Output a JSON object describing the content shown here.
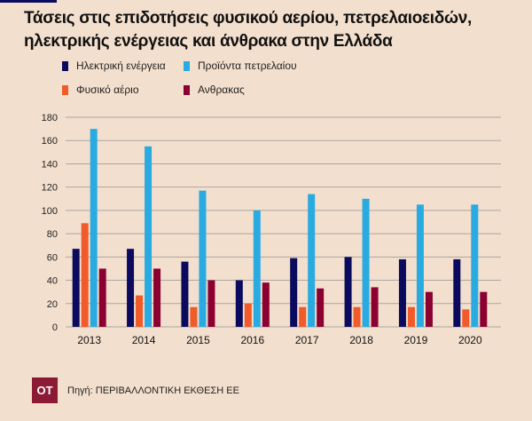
{
  "title_lines": [
    "Τάσεις στις επιδοτήσεις φυσικού αερίου, πετρελαιοειδών,",
    "ηλεκτρικής ενέργειας και άνθρακα στην Ελλάδα"
  ],
  "source": "Πηγή: ΠΕΡΙΒΑΛΛΟΝΤΙΚΗ ΕΚΘΕΣΗ ΕΕ",
  "logo": "OT",
  "colors": {
    "background": "#f3dfcd",
    "grid": "#a9a6a3",
    "logo": "#8b1a35"
  },
  "chart_data": {
    "type": "bar",
    "title": "Τάσεις στις επιδοτήσεις φυσικού αερίου, πετρελαιοειδών, ηλεκτρικής ενέργειας και άνθρακα στην Ελλάδα",
    "categories": [
      "2013",
      "2014",
      "2015",
      "2016",
      "2017",
      "2018",
      "2019",
      "2020"
    ],
    "series": [
      {
        "name": "Ηλεκτρική ενέργεια",
        "color": "#0a0a5e",
        "values": [
          67,
          67,
          56,
          40,
          59,
          60,
          58,
          58
        ]
      },
      {
        "name": "Φυσικό αέριο",
        "color": "#f15a29",
        "values": [
          89,
          27,
          17,
          20,
          17,
          17,
          17,
          15
        ]
      },
      {
        "name": "Προϊόντα πετρελαίου",
        "color": "#29abe2",
        "values": [
          170,
          155,
          117,
          100,
          114,
          110,
          105,
          105
        ]
      },
      {
        "name": "Ανθρακας",
        "color": "#8b0031",
        "values": [
          50,
          50,
          40,
          38,
          33,
          34,
          30,
          30
        ]
      }
    ],
    "legend_order": [
      0,
      2,
      1,
      3
    ],
    "yticks": [
      0,
      20,
      40,
      60,
      80,
      100,
      120,
      140,
      160,
      180
    ],
    "ylim": [
      0,
      180
    ],
    "xlabel": "",
    "ylabel": "",
    "grid": true,
    "legend_placement": "top"
  }
}
